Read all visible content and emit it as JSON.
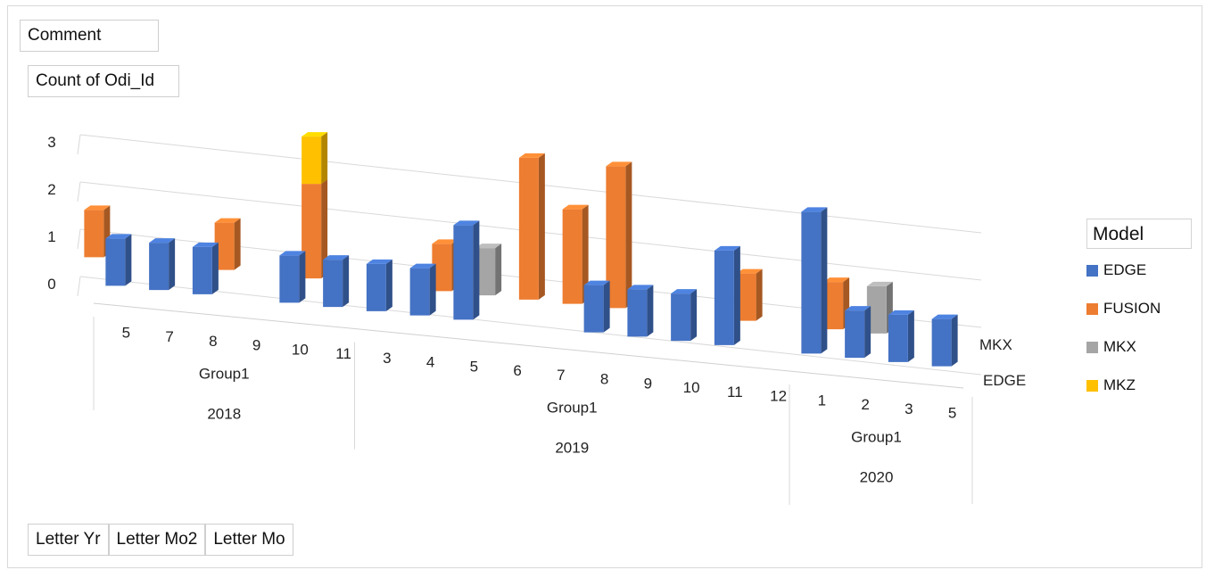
{
  "buttons": {
    "comment": "Comment",
    "value_field": "Count of Odi_Id",
    "axis_fields": [
      "Letter Yr",
      "Letter Mo2",
      "Letter Mo"
    ]
  },
  "legend": {
    "title": "Model",
    "items": [
      {
        "name": "EDGE",
        "color": "#4472C4"
      },
      {
        "name": "FUSION",
        "color": "#ED7D31"
      },
      {
        "name": "MKX",
        "color": "#A5A5A5"
      },
      {
        "name": "MKZ",
        "color": "#FFC000"
      }
    ]
  },
  "chart_data": {
    "type": "bar",
    "subtype": "3d-column",
    "y_ticks": [
      "0",
      "1",
      "2",
      "3"
    ],
    "ylim": [
      0,
      3
    ],
    "grid": true,
    "legend_position": "right",
    "depth_labels": [
      "MKX",
      "EDGE"
    ],
    "categories": [
      {
        "year": "2018",
        "group": "Group1",
        "month": "5"
      },
      {
        "year": "2018",
        "group": "Group1",
        "month": "7"
      },
      {
        "year": "2018",
        "group": "Group1",
        "month": "8"
      },
      {
        "year": "2018",
        "group": "Group1",
        "month": "9"
      },
      {
        "year": "2018",
        "group": "Group1",
        "month": "10"
      },
      {
        "year": "2018",
        "group": "Group1",
        "month": "11"
      },
      {
        "year": "2019",
        "group": "Group1",
        "month": "3"
      },
      {
        "year": "2019",
        "group": "Group1",
        "month": "4"
      },
      {
        "year": "2019",
        "group": "Group1",
        "month": "5"
      },
      {
        "year": "2019",
        "group": "Group1",
        "month": "6"
      },
      {
        "year": "2019",
        "group": "Group1",
        "month": "7"
      },
      {
        "year": "2019",
        "group": "Group1",
        "month": "8"
      },
      {
        "year": "2019",
        "group": "Group1",
        "month": "9"
      },
      {
        "year": "2019",
        "group": "Group1",
        "month": "10"
      },
      {
        "year": "2019",
        "group": "Group1",
        "month": "11"
      },
      {
        "year": "2019",
        "group": "Group1",
        "month": "12"
      },
      {
        "year": "2020",
        "group": "Group1",
        "month": "1"
      },
      {
        "year": "2020",
        "group": "Group1",
        "month": "2"
      },
      {
        "year": "2020",
        "group": "Group1",
        "month": "3"
      },
      {
        "year": "2020",
        "group": "Group1",
        "month": "5"
      }
    ],
    "year_groups": [
      {
        "year": "2018",
        "group": "Group1"
      },
      {
        "year": "2019",
        "group": "Group1"
      },
      {
        "year": "2020",
        "group": "Group1"
      }
    ],
    "series": [
      {
        "name": "EDGE",
        "values": [
          1,
          1,
          1,
          0,
          1,
          1,
          1,
          1,
          2,
          0,
          0,
          1,
          1,
          1,
          2,
          0,
          3,
          1,
          1,
          1
        ]
      },
      {
        "name": "FUSION",
        "values": [
          1,
          0,
          0,
          1,
          0,
          2,
          0,
          0,
          1,
          0,
          3,
          2,
          3,
          0,
          0,
          1,
          0,
          1,
          0,
          0
        ]
      },
      {
        "name": "MKX",
        "values": [
          0,
          0,
          0,
          0,
          0,
          0,
          0,
          0,
          0,
          1,
          0,
          0,
          0,
          0,
          0,
          0,
          0,
          0,
          1,
          0
        ]
      },
      {
        "name": "MKZ",
        "values": [
          0,
          0,
          0,
          0,
          0,
          1,
          0,
          0,
          0,
          0,
          0,
          0,
          0,
          0,
          0,
          0,
          0,
          0,
          0,
          0
        ]
      }
    ]
  }
}
